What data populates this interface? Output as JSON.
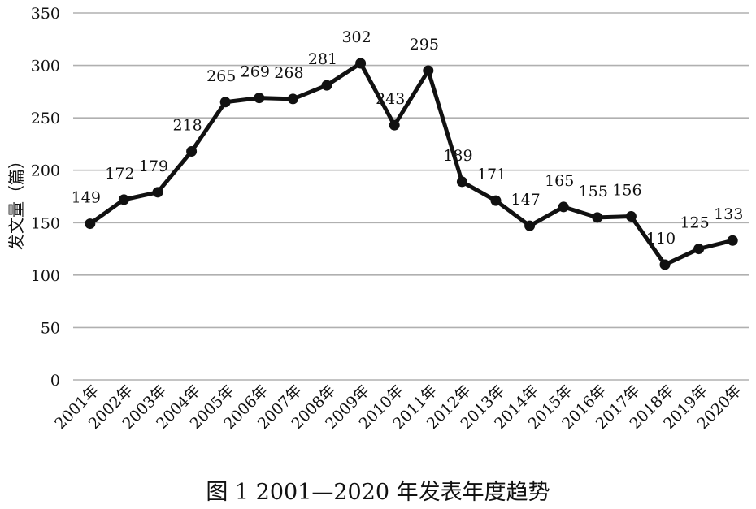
{
  "chart_data": {
    "type": "line",
    "title": "图 1 2001—2020 年发表年度趋势",
    "ylabel": "发文量（篇）",
    "xlabel": "",
    "categories": [
      "2001年",
      "2002年",
      "2003年",
      "2004年",
      "2005年",
      "2006年",
      "2007年",
      "2008年",
      "2009年",
      "2010年",
      "2011年",
      "2012年",
      "2013年",
      "2014年",
      "2015年",
      "2016年",
      "2017年",
      "2018年",
      "2019年",
      "2020年"
    ],
    "values": [
      149,
      172,
      179,
      218,
      265,
      269,
      268,
      281,
      302,
      243,
      295,
      189,
      171,
      147,
      165,
      155,
      156,
      110,
      125,
      133
    ],
    "ylim": [
      0,
      350
    ],
    "yticks": [
      0,
      50,
      100,
      150,
      200,
      250,
      300,
      350
    ],
    "grid": true,
    "legend": "none",
    "line_color": "#111111",
    "grid_color": "#b0b0b0"
  }
}
